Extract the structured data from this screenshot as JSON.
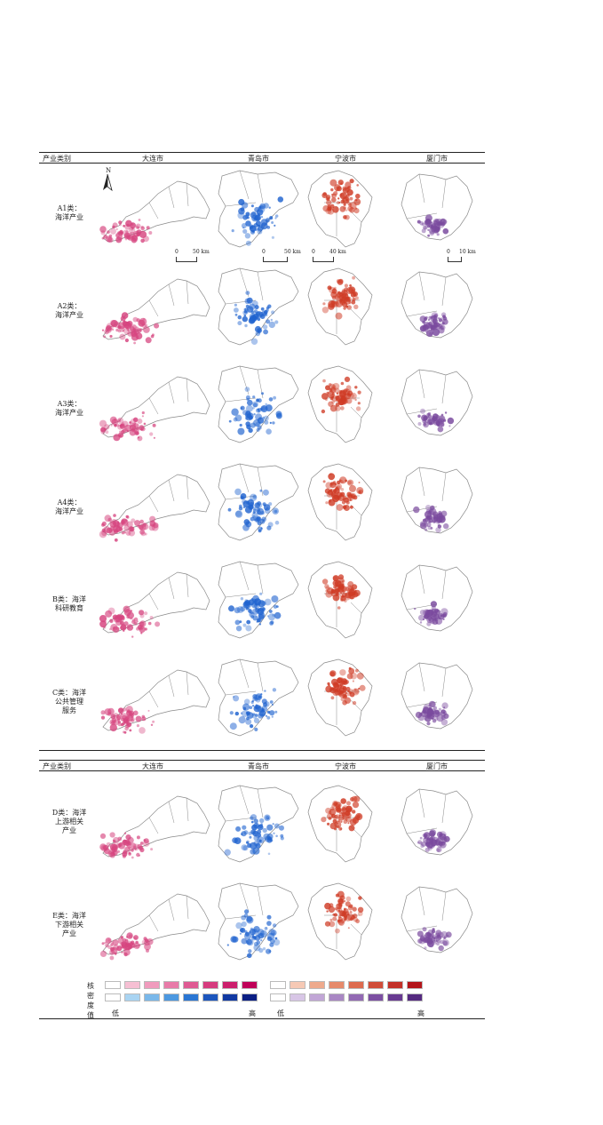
{
  "header_top": {
    "col0": "产业类别",
    "cols": [
      "大连市",
      "青岛市",
      "宁波市",
      "厦门市"
    ]
  },
  "header_bottom": {
    "col0": "产业类别",
    "cols": [
      "大连市",
      "青岛市",
      "宁波市",
      "厦门市"
    ]
  },
  "rows": [
    {
      "lines": [
        "A1类：",
        "海洋产业"
      ]
    },
    {
      "lines": [
        "A2类：",
        "海洋产业"
      ]
    },
    {
      "lines": [
        "A3类：",
        "海洋产业"
      ]
    },
    {
      "lines": [
        "A4类：",
        "海洋产业"
      ]
    },
    {
      "lines": [
        "B类：海洋",
        "科研教育"
      ]
    },
    {
      "lines": [
        "C类：海洋",
        "公共管理",
        "服务"
      ]
    },
    {
      "lines": [
        "D类：海洋",
        "上游相关",
        "产业"
      ]
    },
    {
      "lines": [
        "E类：海洋",
        "下游相关",
        "产业"
      ]
    }
  ],
  "north_label": "N",
  "scalebars": [
    {
      "left": "0",
      "right": "50 km"
    },
    {
      "left": "0",
      "right": "50 km"
    },
    {
      "left": "0",
      "right": "40 km"
    },
    {
      "left": "0",
      "right": "10 km"
    }
  ],
  "legend": {
    "title_chars": [
      "核",
      "密",
      "度",
      "值"
    ],
    "low": "低",
    "high": "高",
    "ramps": {
      "pink": [
        "#ffffff",
        "#f6bfd3",
        "#f09bbd",
        "#e87aa8",
        "#df5a93",
        "#d63b7e",
        "#cc1f6c",
        "#c00058"
      ],
      "blue": [
        "#ffffff",
        "#a9d4f2",
        "#7ab8ea",
        "#4c98e0",
        "#2a76d3",
        "#1c56bd",
        "#1139a2",
        "#0b1f84"
      ],
      "orange": [
        "#ffffff",
        "#f6c9b5",
        "#eeaa8d",
        "#e68a6b",
        "#dd6b4f",
        "#d04d39",
        "#c33128",
        "#b3151a"
      ],
      "purple": [
        "#ffffff",
        "#d8c6e6",
        "#c1a6d6",
        "#a987c4",
        "#9269b3",
        "#7c4fa2",
        "#683a91",
        "#552a80"
      ]
    }
  },
  "map_colors": {
    "dalian": "#d6457f",
    "qingdao": "#1f63cf",
    "ningbo": "#cf3b25",
    "xiamen": "#7a4a9e",
    "outline": "#8a8a8a"
  }
}
